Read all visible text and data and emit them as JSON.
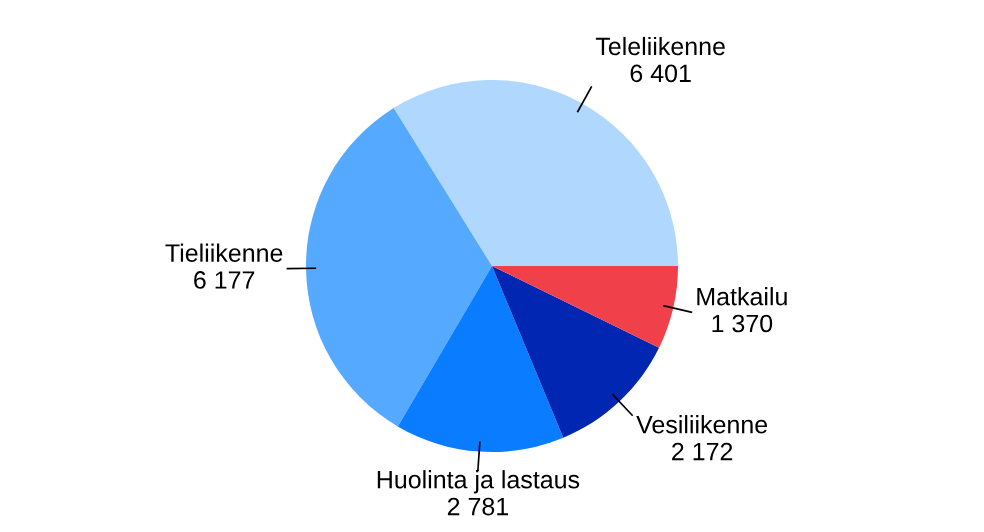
{
  "chart_data": {
    "type": "pie",
    "categories": [
      "Teleliikenne",
      "Tieliikenne",
      "Huolinta ja lastaus",
      "Vesiliikenne",
      "Matkailu"
    ],
    "values": [
      6401,
      6177,
      2781,
      2172,
      1370
    ],
    "value_labels": [
      "6 401",
      "6 177",
      "2 781",
      "2 172",
      "1 370"
    ],
    "colors": [
      "#b0d8ff",
      "#55aaff",
      "#0a7cff",
      "#0026b2",
      "#f0404a"
    ]
  }
}
